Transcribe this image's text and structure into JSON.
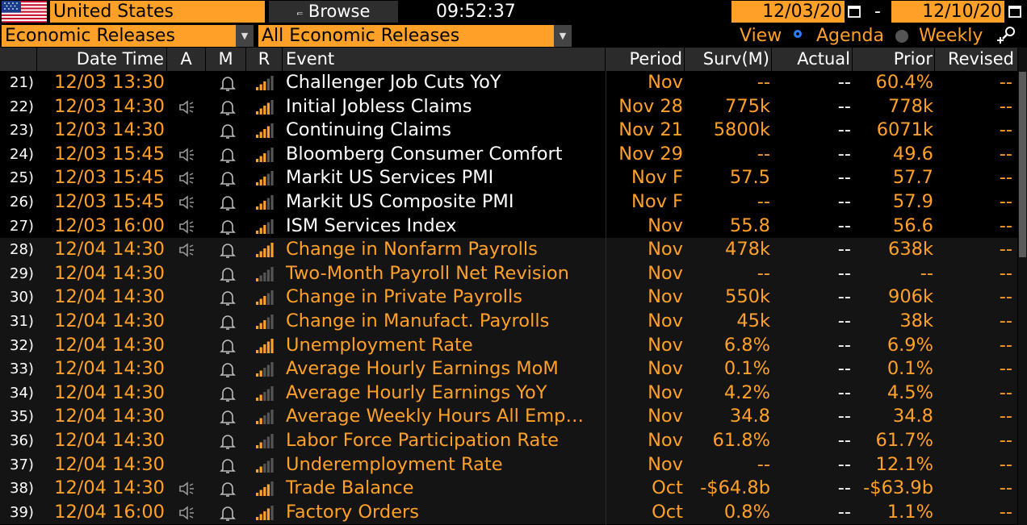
{
  "header": {
    "country": "United States",
    "browse_label": "Browse",
    "browse_icon": "browse-icon",
    "clock": "09:52:37",
    "date_from": "12/03/20",
    "date_sep": "-",
    "date_to": "12/10/20"
  },
  "filters": {
    "category": "Economic Releases",
    "subcategory": "All Economic Releases",
    "view_label": "View",
    "view_options": [
      "Agenda",
      "Weekly"
    ],
    "view_selected": "Agenda"
  },
  "columns": [
    "Date Time",
    "A",
    "M",
    "R",
    "Event",
    "Period",
    "Surv(M)",
    "Actual",
    "Prior",
    "Revised"
  ],
  "colors": {
    "accent": "#ffa028",
    "header_bg": "#2b2b2b",
    "text": "#ffffff",
    "dim_bars": "#555555"
  },
  "rows": [
    {
      "idx": "21)",
      "datetime": "12/03 13:30",
      "alert": false,
      "relevance": 3,
      "event": "Challenger Job Cuts YoY",
      "period": "Nov",
      "survey": "--",
      "actual": "--",
      "prior": "60.4%",
      "revised": "--",
      "past": true
    },
    {
      "idx": "22)",
      "datetime": "12/03 14:30",
      "alert": true,
      "relevance": 4,
      "event": "Initial Jobless Claims",
      "period": "Nov 28",
      "survey": "775k",
      "actual": "--",
      "prior": "778k",
      "revised": "--",
      "past": true
    },
    {
      "idx": "23)",
      "datetime": "12/03 14:30",
      "alert": false,
      "relevance": 4,
      "event": "Continuing Claims",
      "period": "Nov 21",
      "survey": "5800k",
      "actual": "--",
      "prior": "6071k",
      "revised": "--",
      "past": true
    },
    {
      "idx": "24)",
      "datetime": "12/03 15:45",
      "alert": true,
      "relevance": 3,
      "event": "Bloomberg Consumer Comfort",
      "period": "Nov 29",
      "survey": "--",
      "actual": "--",
      "prior": "49.6",
      "revised": "--",
      "past": true
    },
    {
      "idx": "25)",
      "datetime": "12/03 15:45",
      "alert": true,
      "relevance": 3,
      "event": "Markit US Services PMI",
      "period": "Nov F",
      "survey": "57.5",
      "actual": "--",
      "prior": "57.7",
      "revised": "--",
      "past": true
    },
    {
      "idx": "26)",
      "datetime": "12/03 15:45",
      "alert": true,
      "relevance": 3,
      "event": "Markit US Composite PMI",
      "period": "Nov F",
      "survey": "--",
      "actual": "--",
      "prior": "57.9",
      "revised": "--",
      "past": true
    },
    {
      "idx": "27)",
      "datetime": "12/03 16:00",
      "alert": true,
      "relevance": 3,
      "event": "ISM Services Index",
      "period": "Nov",
      "survey": "55.8",
      "actual": "--",
      "prior": "56.6",
      "revised": "--",
      "past": true
    },
    {
      "idx": "28)",
      "datetime": "12/04 14:30",
      "alert": true,
      "relevance": 5,
      "event": "Change in Nonfarm Payrolls",
      "period": "Nov",
      "survey": "478k",
      "actual": "--",
      "prior": "638k",
      "revised": "--",
      "past": false
    },
    {
      "idx": "29)",
      "datetime": "12/04 14:30",
      "alert": false,
      "relevance": 1,
      "event": "Two-Month Payroll Net Revision",
      "period": "Nov",
      "survey": "--",
      "actual": "--",
      "prior": "--",
      "revised": "--",
      "past": false
    },
    {
      "idx": "30)",
      "datetime": "12/04 14:30",
      "alert": false,
      "relevance": 3,
      "event": "Change in Private Payrolls",
      "period": "Nov",
      "survey": "550k",
      "actual": "--",
      "prior": "906k",
      "revised": "--",
      "past": false
    },
    {
      "idx": "31)",
      "datetime": "12/04 14:30",
      "alert": false,
      "relevance": 3,
      "event": "Change in Manufact. Payrolls",
      "period": "Nov",
      "survey": "45k",
      "actual": "--",
      "prior": "38k",
      "revised": "--",
      "past": false
    },
    {
      "idx": "32)",
      "datetime": "12/04 14:30",
      "alert": false,
      "relevance": 5,
      "event": "Unemployment Rate",
      "period": "Nov",
      "survey": "6.8%",
      "actual": "--",
      "prior": "6.9%",
      "revised": "--",
      "past": false
    },
    {
      "idx": "33)",
      "datetime": "12/04 14:30",
      "alert": false,
      "relevance": 2,
      "event": "Average Hourly Earnings MoM",
      "period": "Nov",
      "survey": "0.1%",
      "actual": "--",
      "prior": "0.1%",
      "revised": "--",
      "past": false
    },
    {
      "idx": "34)",
      "datetime": "12/04 14:30",
      "alert": false,
      "relevance": 2,
      "event": "Average Hourly Earnings YoY",
      "period": "Nov",
      "survey": "4.2%",
      "actual": "--",
      "prior": "4.5%",
      "revised": "--",
      "past": false
    },
    {
      "idx": "35)",
      "datetime": "12/04 14:30",
      "alert": false,
      "relevance": 2,
      "event": "Average Weekly Hours All Emp…",
      "period": "Nov",
      "survey": "34.8",
      "actual": "--",
      "prior": "34.8",
      "revised": "--",
      "past": false
    },
    {
      "idx": "36)",
      "datetime": "12/04 14:30",
      "alert": false,
      "relevance": 2,
      "event": "Labor Force Participation Rate",
      "period": "Nov",
      "survey": "61.8%",
      "actual": "--",
      "prior": "61.7%",
      "revised": "--",
      "past": false
    },
    {
      "idx": "37)",
      "datetime": "12/04 14:30",
      "alert": false,
      "relevance": 2,
      "event": "Underemployment Rate",
      "period": "Nov",
      "survey": "--",
      "actual": "--",
      "prior": "12.1%",
      "revised": "--",
      "past": false
    },
    {
      "idx": "38)",
      "datetime": "12/04 14:30",
      "alert": true,
      "relevance": 4,
      "event": "Trade Balance",
      "period": "Oct",
      "survey": "-$64.8b",
      "actual": "--",
      "prior": "-$63.9b",
      "revised": "--",
      "past": false
    },
    {
      "idx": "39)",
      "datetime": "12/04 16:00",
      "alert": true,
      "relevance": 4,
      "event": "Factory Orders",
      "period": "Oct",
      "survey": "0.8%",
      "actual": "--",
      "prior": "1.1%",
      "revised": "--",
      "past": false
    }
  ]
}
